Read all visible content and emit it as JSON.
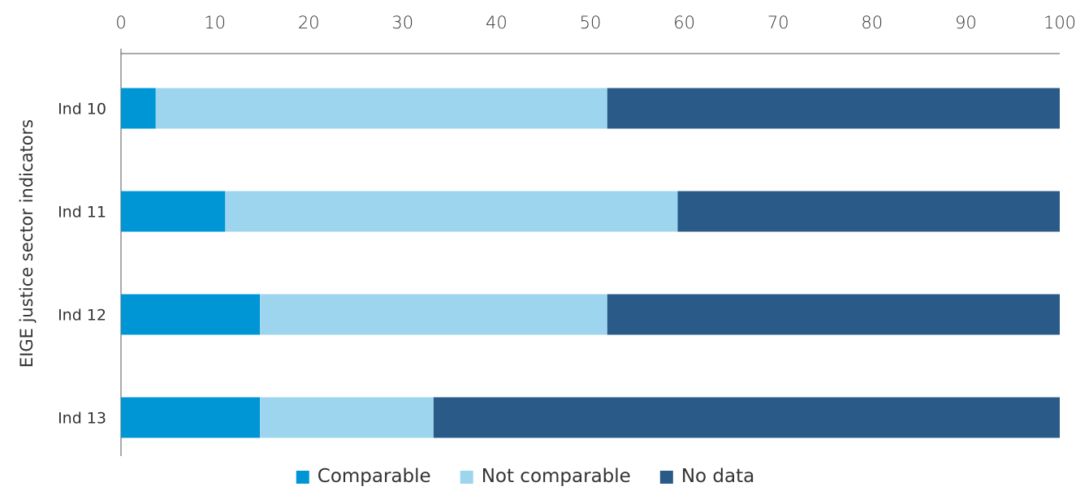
{
  "chart_data": {
    "type": "bar",
    "orientation": "horizontal",
    "stacked": true,
    "title": "",
    "xlabel": "",
    "ylabel": "EIGE justice sector indicators",
    "xlim": [
      0,
      100
    ],
    "xticks": [
      0,
      10,
      20,
      30,
      40,
      50,
      60,
      70,
      80,
      90,
      100
    ],
    "x_axis_position": "top",
    "grid": false,
    "legend_position": "bottom",
    "categories": [
      "Ind 10",
      "Ind 11",
      "Ind 12",
      "Ind 13"
    ],
    "series": [
      {
        "name": "Comparable",
        "color": "#0096d6",
        "values": [
          3.7,
          11.1,
          14.8,
          14.8
        ]
      },
      {
        "name": "Not comparable",
        "color": "#9dd4ee",
        "values": [
          48.1,
          48.2,
          37.0,
          18.5
        ]
      },
      {
        "name": "No data",
        "color": "#2a5a87",
        "values": [
          48.2,
          40.7,
          48.2,
          66.7
        ]
      }
    ]
  }
}
